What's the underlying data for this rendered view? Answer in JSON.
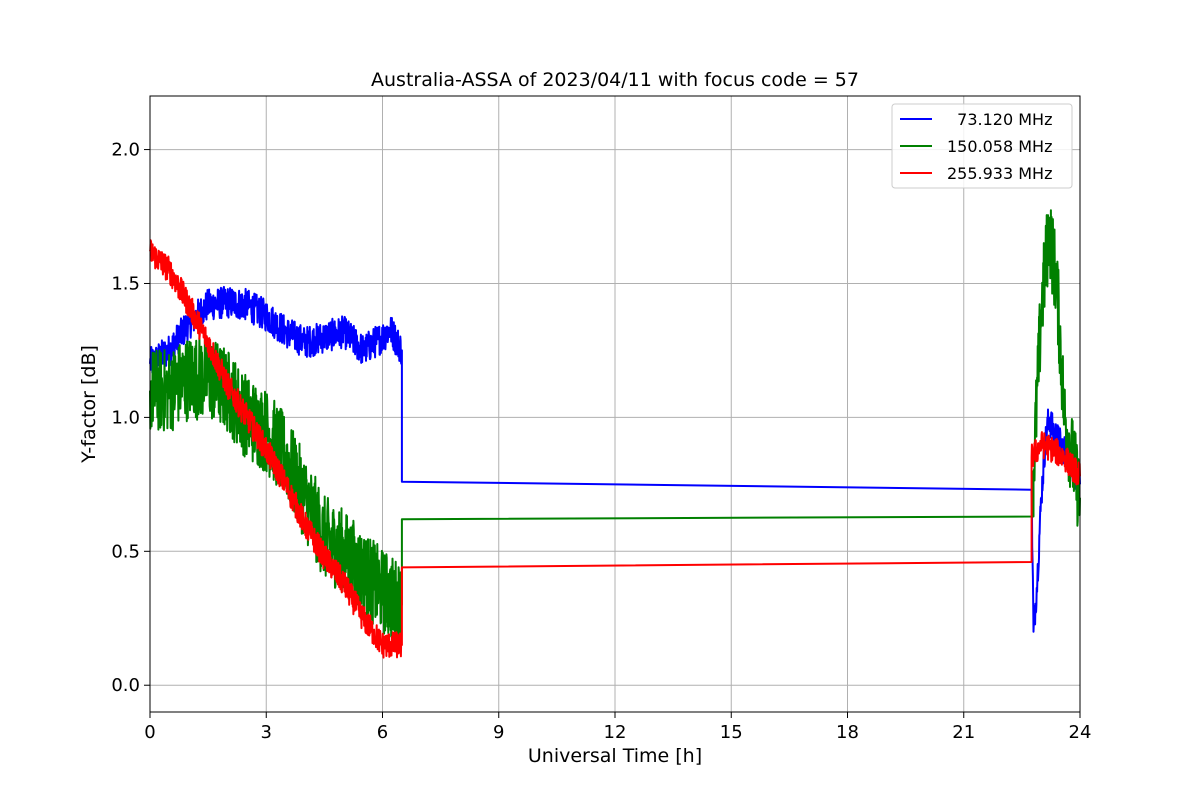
{
  "chart_data": {
    "type": "line",
    "title": "Australia-ASSA of 2023/04/11 with focus code = 57",
    "xlabel": "Universal Time [h]",
    "ylabel": "Y-factor [dB]",
    "xlim": [
      0,
      24
    ],
    "ylim": [
      -0.1,
      2.2
    ],
    "xticks": [
      0,
      3,
      6,
      9,
      12,
      15,
      18,
      21,
      24
    ],
    "yticks": [
      0.0,
      0.5,
      1.0,
      1.5,
      2.0
    ],
    "ytick_labels": [
      "0.0",
      "0.5",
      "1.0",
      "1.5",
      "2.0"
    ],
    "grid": true,
    "legend_position": "top-right",
    "series": [
      {
        "name": "  73.120 MHz",
        "color": "#0000ff",
        "noise": 0.06,
        "x": [
          0,
          0.5,
          1,
          1.5,
          2,
          2.5,
          3,
          3.5,
          4,
          4.5,
          5,
          5.5,
          6,
          6.2,
          6.5,
          6.5,
          22.75,
          22.8,
          22.9,
          23.0,
          23.1,
          23.2,
          23.3,
          23.5,
          23.7,
          24.0
        ],
        "y": [
          1.2,
          1.25,
          1.35,
          1.42,
          1.43,
          1.42,
          1.38,
          1.32,
          1.28,
          1.3,
          1.32,
          1.25,
          1.3,
          1.33,
          1.25,
          0.76,
          0.73,
          0.2,
          0.4,
          0.7,
          0.9,
          1.0,
          0.95,
          0.9,
          0.85,
          0.75
        ],
        "noisy_ranges": [
          [
            0,
            6.5
          ],
          [
            22.75,
            24.0
          ]
        ]
      },
      {
        "name": "150.058 MHz",
        "color": "#008000",
        "noise": 0.16,
        "x": [
          0,
          0.5,
          1,
          1.5,
          2,
          2.5,
          3,
          3.5,
          4,
          4.5,
          5,
          5.5,
          6,
          6.5,
          6.5,
          22.8,
          22.8,
          23.0,
          23.2,
          23.4,
          23.6,
          23.8,
          24.0
        ],
        "y": [
          1.1,
          1.1,
          1.15,
          1.15,
          1.1,
          1.0,
          0.95,
          0.85,
          0.7,
          0.55,
          0.5,
          0.42,
          0.35,
          0.3,
          0.62,
          0.63,
          0.8,
          1.4,
          1.7,
          1.5,
          1.0,
          0.85,
          0.7
        ],
        "noisy_ranges": [
          [
            0,
            6.5
          ],
          [
            22.8,
            24.0
          ]
        ]
      },
      {
        "name": "255.933 MHz",
        "color": "#ff0000",
        "noise": 0.05,
        "x": [
          0,
          0.5,
          1,
          1.5,
          2,
          2.5,
          3,
          3.5,
          4,
          4.5,
          5,
          5.5,
          6,
          6.5,
          6.5,
          22.75,
          22.75,
          23.0,
          23.3,
          23.6,
          24.0
        ],
        "y": [
          1.62,
          1.55,
          1.42,
          1.28,
          1.12,
          1.0,
          0.88,
          0.75,
          0.6,
          0.48,
          0.38,
          0.25,
          0.15,
          0.15,
          0.44,
          0.46,
          0.85,
          0.9,
          0.88,
          0.85,
          0.78
        ],
        "noisy_ranges": [
          [
            0,
            6.5
          ],
          [
            22.75,
            24.0
          ]
        ]
      }
    ]
  }
}
